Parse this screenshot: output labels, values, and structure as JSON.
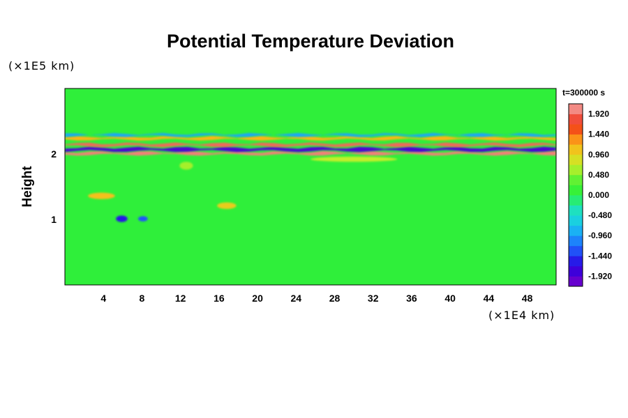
{
  "chart_data": {
    "type": "heatmap",
    "title": "Potential Temperature Deviation",
    "xlabel": "",
    "ylabel": "Height",
    "x_unit": "(×1E4 km)",
    "y_unit": "(×1E5 km)",
    "time_label": "t=300000 s",
    "xlim": [
      0,
      51
    ],
    "ylim": [
      0,
      3
    ],
    "x_ticks": [
      4,
      8,
      12,
      16,
      20,
      24,
      28,
      32,
      36,
      40,
      44,
      48
    ],
    "y_ticks": [
      1,
      2
    ],
    "colorbar": {
      "min": -2.16,
      "max": 2.16,
      "step": 0.24,
      "tick_values": [
        1.92,
        1.44,
        0.96,
        0.48,
        0.0,
        -0.48,
        -0.96,
        -1.44,
        -1.92
      ],
      "tick_labels": [
        "1.920",
        "1.440",
        "0.960",
        "0.480",
        "0.000",
        "-0.480",
        "-0.960",
        "-1.440",
        "-1.920"
      ]
    },
    "background_value": 0.0,
    "features": [
      {
        "kind": "band",
        "y": 2.01,
        "thickness": 0.04,
        "value": 2.0
      },
      {
        "kind": "band",
        "y": 2.07,
        "thickness": 0.05,
        "value": -1.9
      },
      {
        "kind": "band",
        "y": 2.14,
        "thickness": 0.04,
        "value": 1.9
      },
      {
        "kind": "band",
        "y": 2.24,
        "thickness": 0.04,
        "value": 1.2
      },
      {
        "kind": "band",
        "y": 2.29,
        "thickness": 0.03,
        "value": -0.9
      },
      {
        "kind": "blob",
        "x": 3.8,
        "y": 1.36,
        "rx": 1.4,
        "ry": 0.05,
        "value": 1.1
      },
      {
        "kind": "blob",
        "x": 5.9,
        "y": 1.01,
        "rx": 0.6,
        "ry": 0.05,
        "value": -1.6
      },
      {
        "kind": "blob",
        "x": 8.1,
        "y": 1.01,
        "rx": 0.5,
        "ry": 0.04,
        "value": -1.3
      },
      {
        "kind": "blob",
        "x": 16.8,
        "y": 1.21,
        "rx": 1.0,
        "ry": 0.05,
        "value": 1.0
      },
      {
        "kind": "blob",
        "x": 12.6,
        "y": 1.82,
        "rx": 0.7,
        "ry": 0.06,
        "value": 0.6
      },
      {
        "kind": "blob",
        "x": 30.0,
        "y": 1.92,
        "rx": 4.5,
        "ry": 0.04,
        "value": 0.7
      }
    ]
  }
}
